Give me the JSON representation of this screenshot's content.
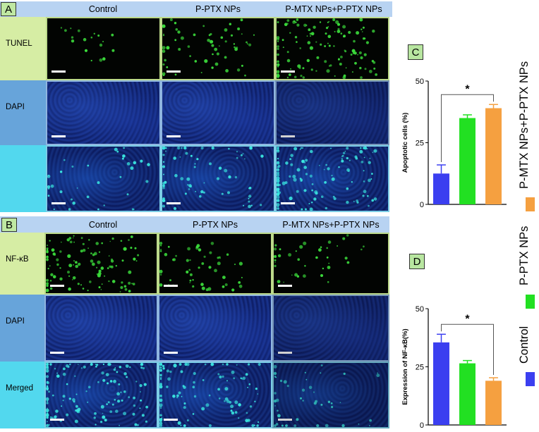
{
  "panelA": {
    "letter": "A",
    "columns": [
      "Control",
      "P-PTX NPs",
      "P-MTX NPs+P-PTX NPs"
    ],
    "rows": [
      "TUNEL",
      "DAPI",
      ""
    ]
  },
  "panelB": {
    "letter": "B",
    "columns": [
      "Control",
      "P-PTX NPs",
      "P-MTX NPs+P-PTX NPs"
    ],
    "rows": [
      "NF-κB",
      "DAPI",
      "Merged"
    ]
  },
  "colors": {
    "control": "#3b3ff0",
    "pptx": "#22e022",
    "combo": "#f5a040",
    "tunel_dot": "#3bdc3b",
    "merged_dot": "#3ae6e0"
  },
  "chart_data": [
    {
      "letter": "C",
      "type": "bar",
      "ylabel": "Apoptotic cells (%)",
      "ylim": [
        0,
        50
      ],
      "yticks": [
        0,
        25,
        50
      ],
      "categories": [
        "Control",
        "P-PTX NPs",
        "P-MTX NPs+P-PTX NPs"
      ],
      "values": [
        12.5,
        35,
        39
      ],
      "errors": [
        3.5,
        1.3,
        1.5
      ],
      "significance": {
        "from": 0,
        "to": 2,
        "label": "*"
      }
    },
    {
      "letter": "D",
      "type": "bar",
      "ylabel": "Expression of NF-κB(%)",
      "ylim": [
        0,
        50
      ],
      "yticks": [
        0,
        25,
        50
      ],
      "categories": [
        "Control",
        "P-PTX NPs",
        "P-MTX NPs+P-PTX NPs"
      ],
      "values": [
        35.5,
        26.5,
        19
      ],
      "errors": [
        3.5,
        1.2,
        1.3
      ],
      "significance": {
        "from": 0,
        "to": 2,
        "label": "*"
      }
    }
  ],
  "legend": {
    "items": [
      "Control",
      "P-PTX NPs",
      "P-MTX NPs+P-PTX NPs"
    ]
  }
}
